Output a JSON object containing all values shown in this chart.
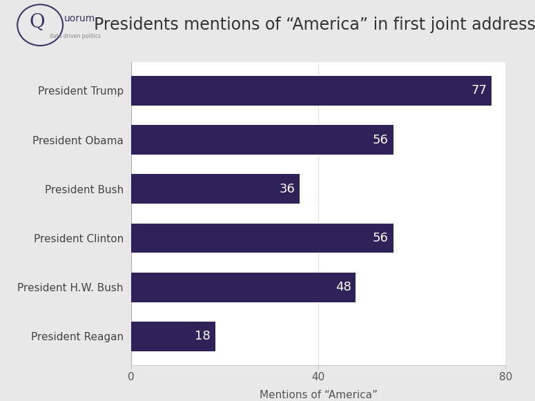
{
  "title": "Presidents mentions of “America” in first joint address",
  "categories": [
    "President Trump",
    "President Obama",
    "President Bush",
    "President Clinton",
    "President H.W. Bush",
    "President Reagan"
  ],
  "values": [
    77,
    56,
    36,
    56,
    48,
    18
  ],
  "bar_color": "#2E2259",
  "bar_height": 0.6,
  "xlabel": "Mentions of “America”",
  "xlim": [
    0,
    80
  ],
  "xticks": [
    0,
    40,
    80
  ],
  "title_fontsize": 17,
  "label_fontsize": 11,
  "tick_fontsize": 11,
  "value_fontsize": 13,
  "value_color": "#ffffff",
  "background_color": "#e8e8e8",
  "plot_background_color": "#ffffff",
  "header_background": "#d9d9d9",
  "grid_color": "#bbbbbb",
  "title_color": "#333333",
  "logo_color": "#3a3565",
  "logo_subtext_color": "#888888"
}
